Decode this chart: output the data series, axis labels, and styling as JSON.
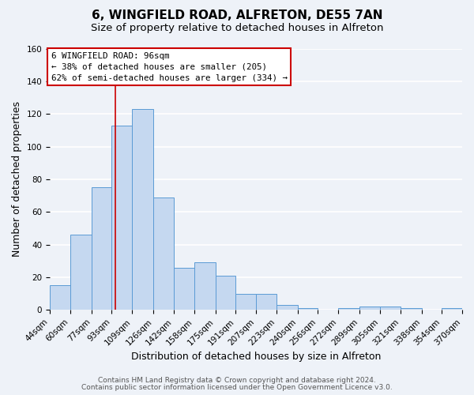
{
  "title": "6, WINGFIELD ROAD, ALFRETON, DE55 7AN",
  "subtitle": "Size of property relative to detached houses in Alfreton",
  "xlabel": "Distribution of detached houses by size in Alfreton",
  "ylabel": "Number of detached properties",
  "bar_values": [
    15,
    46,
    75,
    113,
    123,
    69,
    26,
    29,
    21,
    10,
    10,
    3,
    1,
    0,
    1,
    2,
    2,
    1,
    0,
    1
  ],
  "bin_labels": [
    "44sqm",
    "60sqm",
    "77sqm",
    "93sqm",
    "109sqm",
    "126sqm",
    "142sqm",
    "158sqm",
    "175sqm",
    "191sqm",
    "207sqm",
    "223sqm",
    "240sqm",
    "256sqm",
    "272sqm",
    "289sqm",
    "305sqm",
    "321sqm",
    "338sqm",
    "354sqm",
    "370sqm"
  ],
  "bin_edges": [
    44,
    60,
    77,
    93,
    109,
    126,
    142,
    158,
    175,
    191,
    207,
    223,
    240,
    256,
    272,
    289,
    305,
    321,
    338,
    354,
    370
  ],
  "bar_color": "#c5d8f0",
  "bar_edge_color": "#5b9bd5",
  "ylim": [
    0,
    160
  ],
  "yticks": [
    0,
    20,
    40,
    60,
    80,
    100,
    120,
    140,
    160
  ],
  "vline_x": 96,
  "vline_color": "#cc0000",
  "annotation_title": "6 WINGFIELD ROAD: 96sqm",
  "annotation_line1": "← 38% of detached houses are smaller (205)",
  "annotation_line2": "62% of semi-detached houses are larger (334) →",
  "annotation_box_color": "#ffffff",
  "annotation_box_edge": "#cc0000",
  "footnote1": "Contains HM Land Registry data © Crown copyright and database right 2024.",
  "footnote2": "Contains public sector information licensed under the Open Government Licence v3.0.",
  "bg_color": "#eef2f8",
  "plot_bg_color": "#eef2f8",
  "grid_color": "#ffffff",
  "title_fontsize": 11,
  "subtitle_fontsize": 9.5,
  "xlabel_fontsize": 9,
  "ylabel_fontsize": 9,
  "tick_fontsize": 7.5,
  "footnote_fontsize": 6.5
}
